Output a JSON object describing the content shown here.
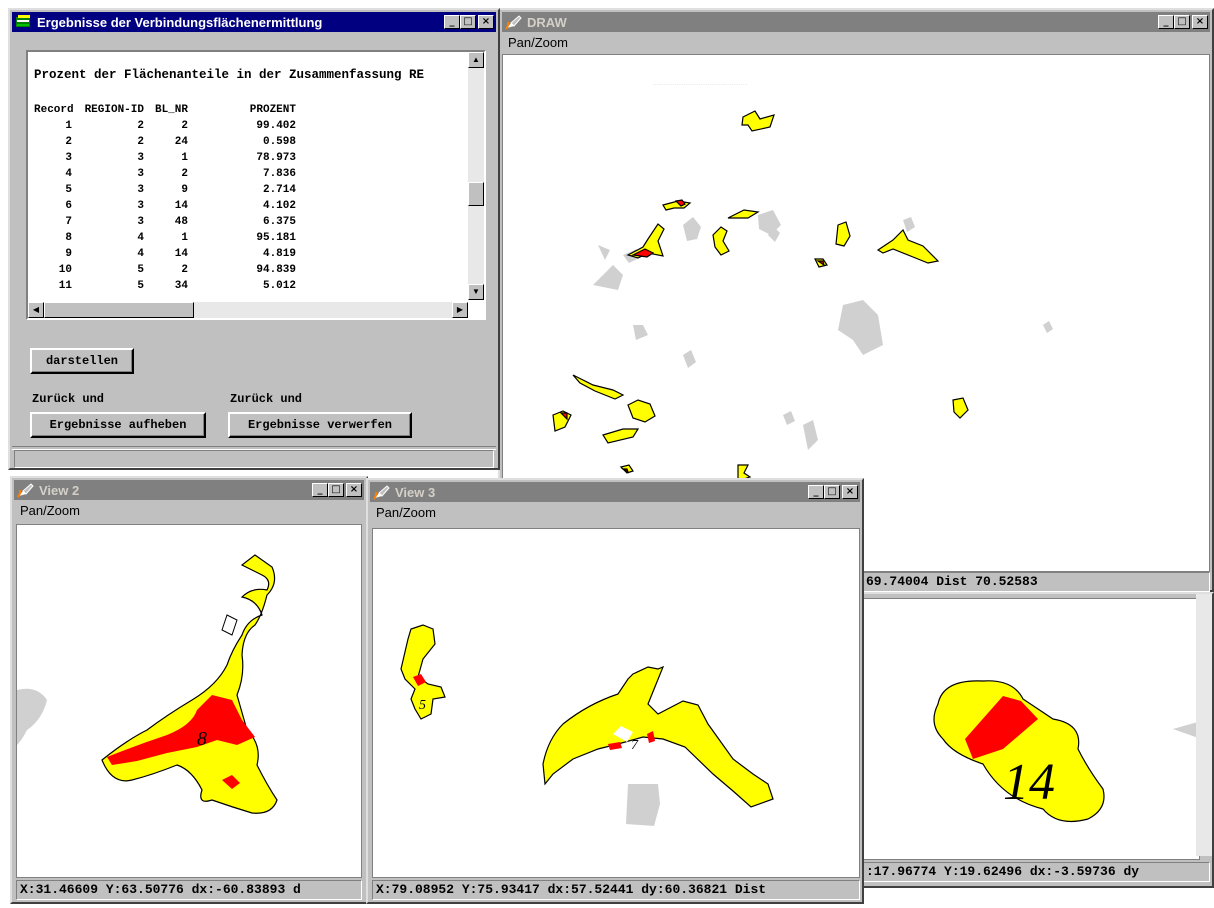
{
  "results_window": {
    "title": "Ergebnisse der Verbindungsflächenermittlung",
    "heading": "Prozent der Flächenanteile in der Zusammenfassung RE",
    "columns": [
      "Record",
      "REGION-ID",
      "BL_NR",
      "PROZENT"
    ],
    "rows": [
      [
        "1",
        "2",
        "2",
        "99.402"
      ],
      [
        "2",
        "2",
        "24",
        "0.598"
      ],
      [
        "3",
        "3",
        "1",
        "78.973"
      ],
      [
        "4",
        "3",
        "2",
        "7.836"
      ],
      [
        "5",
        "3",
        "9",
        "2.714"
      ],
      [
        "6",
        "3",
        "14",
        "4.102"
      ],
      [
        "7",
        "3",
        "48",
        "6.375"
      ],
      [
        "8",
        "4",
        "1",
        "95.181"
      ],
      [
        "9",
        "4",
        "14",
        "4.819"
      ],
      [
        "10",
        "5",
        "2",
        "94.839"
      ],
      [
        "11",
        "5",
        "34",
        "5.012"
      ]
    ],
    "darstellen_label": "darstellen",
    "back_label_left": "Zurück und",
    "back_label_right": "Zurück und",
    "keep_label": "Ergebnisse aufheben",
    "discard_label": "Ergebnisse verwerfen"
  },
  "draw_window": {
    "title": "DRAW",
    "menu": "Pan/Zoom",
    "status": "69.74004 Dist 70.52583"
  },
  "view2_window": {
    "title": "View 2",
    "menu": "Pan/Zoom",
    "status": "X:31.46609 Y:63.50776 dx:-60.83893 d",
    "label": "8"
  },
  "view3_window": {
    "title": "View 3",
    "menu": "Pan/Zoom",
    "status": "X:79.08952 Y:75.93417 dx:57.52441 dy:60.36821 Dist",
    "label_a": "5",
    "label_b": "7"
  },
  "view4_window": {
    "status": ":17.96774 Y:19.62496 dx:-3.59736 dy",
    "label": "14"
  },
  "colors": {
    "titlebar_active": "#000080",
    "titlebar_inactive": "#808080",
    "region_fill": "#ffff00",
    "overlap_fill": "#ff0000",
    "background_regions": "#d0d0d0"
  },
  "icons": [
    "app-icon",
    "pen-icon",
    "minimize-icon",
    "maximize-icon",
    "close-icon"
  ]
}
